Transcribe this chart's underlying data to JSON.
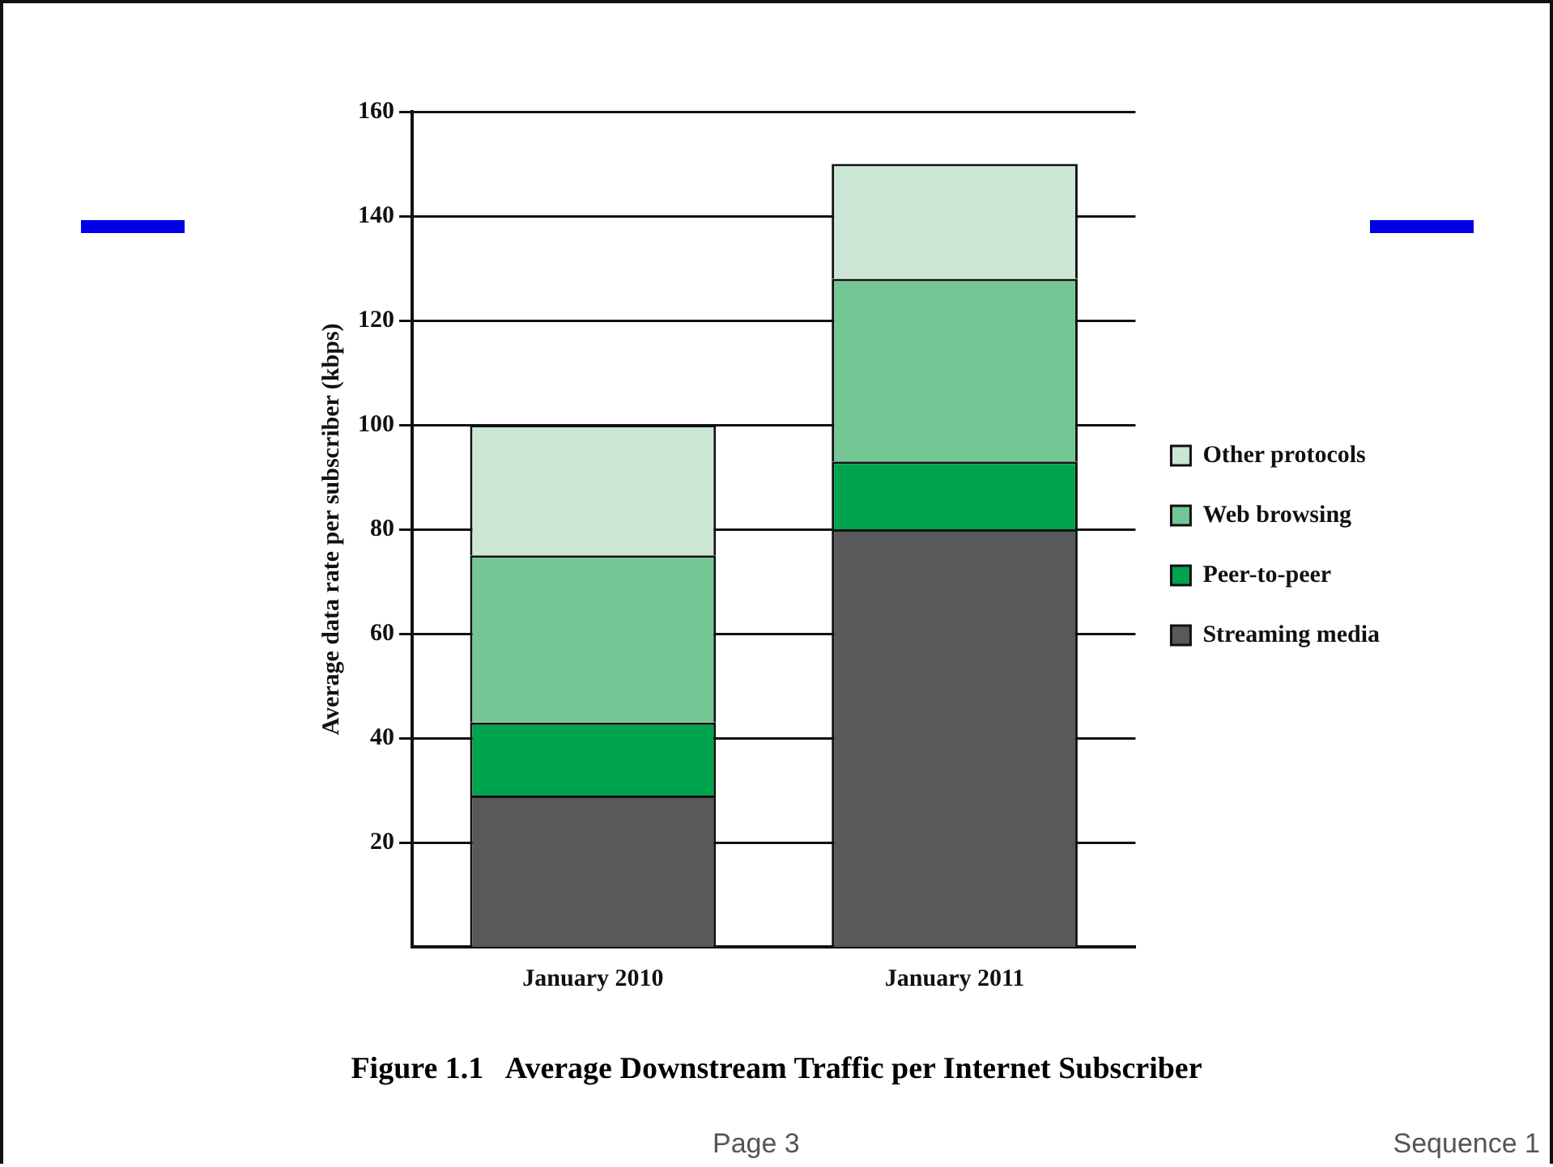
{
  "chart_data": {
    "type": "bar",
    "title": "Figure 1.1   Average Downstream Traffic per Internet Subscriber",
    "ylabel": "Average data rate per subscriber (kbps)",
    "categories": [
      "January 2010",
      "January 2011"
    ],
    "stacked": true,
    "series": [
      {
        "name": "Streaming media",
        "color": "#58595b",
        "values": [
          29,
          80
        ]
      },
      {
        "name": "Peer-to-peer",
        "color": "#00a44f",
        "values": [
          14,
          13
        ]
      },
      {
        "name": "Web browsing",
        "color": "#73c795",
        "values": [
          32,
          35
        ]
      },
      {
        "name": "Other protocols",
        "color": "#cce6d6",
        "values": [
          25,
          22
        ]
      }
    ],
    "ylim": [
      0,
      160
    ],
    "yticks": [
      20,
      40,
      60,
      80,
      100,
      120,
      140,
      160
    ],
    "grid": "y",
    "legend": "right",
    "annotations": [
      "Page 3",
      "Sequence 1"
    ]
  }
}
